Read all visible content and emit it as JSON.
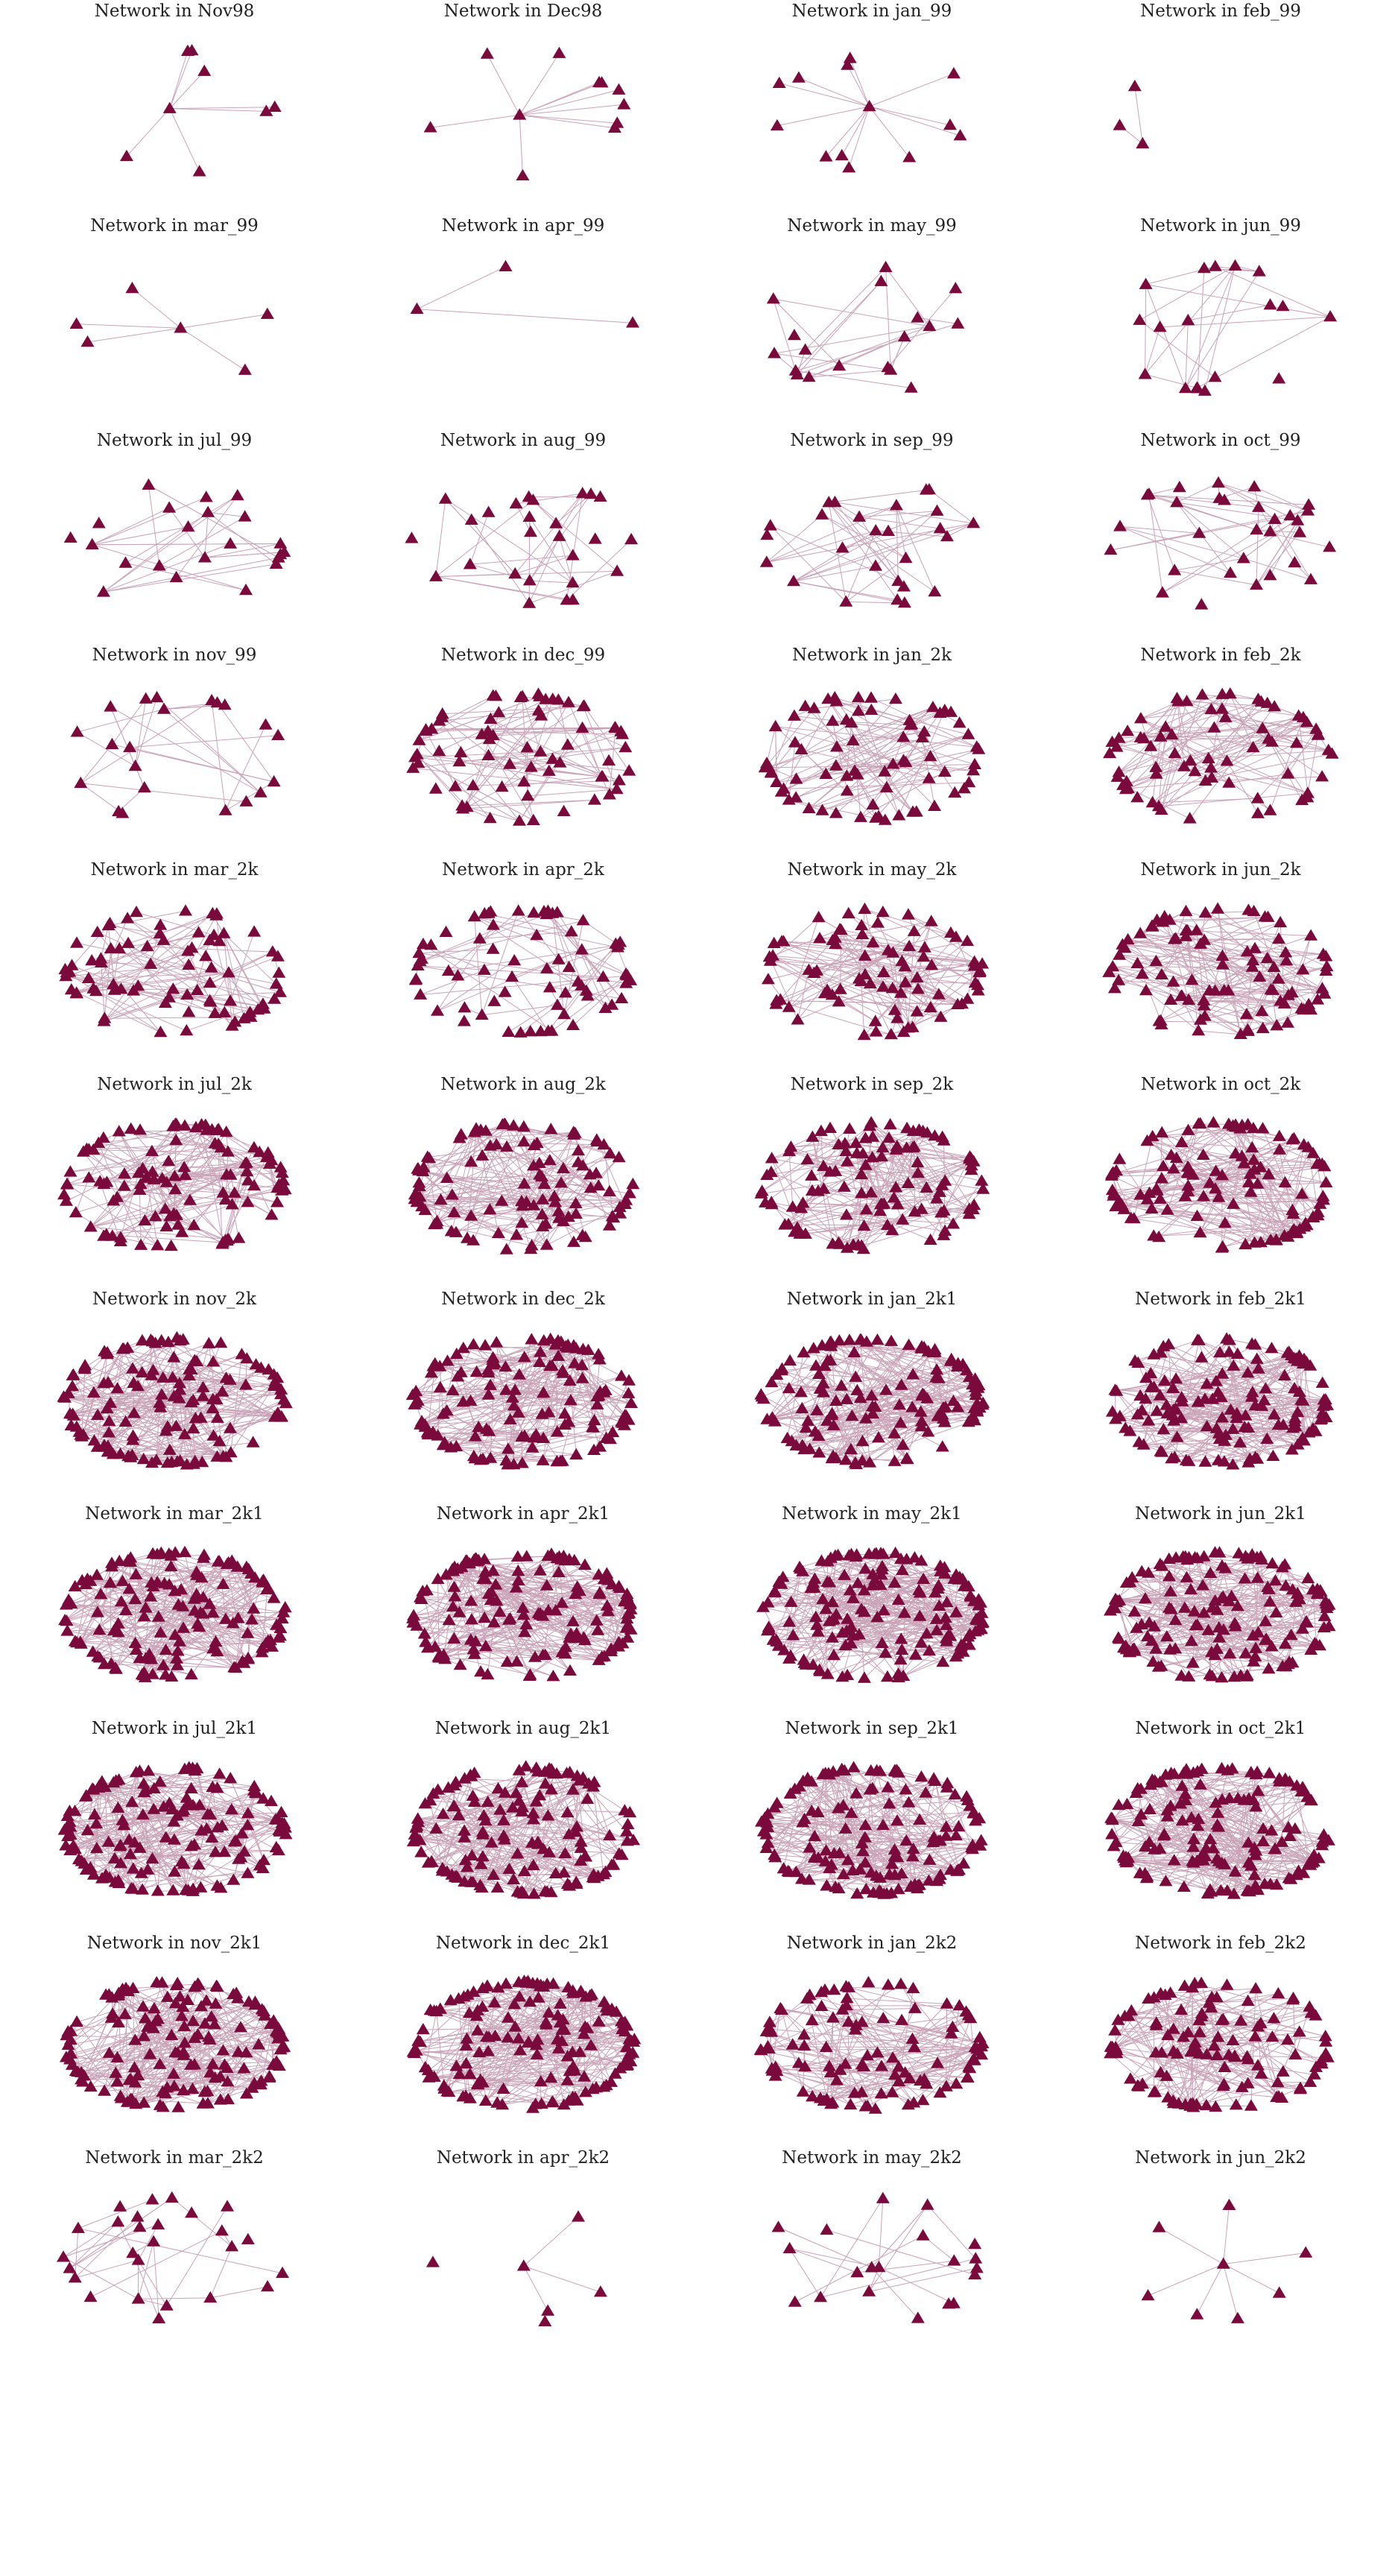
{
  "figure": {
    "node_color": "#7a0a3c",
    "edge_color": "#c9a3b8",
    "node_shape": "triangle",
    "title_prefix": "Network in",
    "panels": [
      {
        "title": "Network in Nov98",
        "nodes": 8,
        "edges": 7,
        "seed": 11
      },
      {
        "title": "Network in Dec98",
        "nodes": 11,
        "edges": 10,
        "seed": 12
      },
      {
        "title": "Network in jan_99",
        "nodes": 13,
        "edges": 12,
        "seed": 13
      },
      {
        "title": "Network in feb_99",
        "nodes": 3,
        "edges": 2,
        "seed": 14
      },
      {
        "title": "Network in mar_99",
        "nodes": 6,
        "edges": 5,
        "seed": 21
      },
      {
        "title": "Network in apr_99",
        "nodes": 3,
        "edges": 2,
        "seed": 22
      },
      {
        "title": "Network in may_99",
        "nodes": 18,
        "edges": 24,
        "seed": 23
      },
      {
        "title": "Network in jun_99",
        "nodes": 18,
        "edges": 22,
        "seed": 24
      },
      {
        "title": "Network in jul_99",
        "nodes": 22,
        "edges": 28,
        "seed": 31
      },
      {
        "title": "Network in aug_99",
        "nodes": 26,
        "edges": 34,
        "seed": 32
      },
      {
        "title": "Network in sep_99",
        "nodes": 26,
        "edges": 40,
        "seed": 33
      },
      {
        "title": "Network in oct_99",
        "nodes": 30,
        "edges": 44,
        "seed": 34
      },
      {
        "title": "Network in nov_99",
        "nodes": 21,
        "edges": 26,
        "seed": 41
      },
      {
        "title": "Network in dec_99",
        "nodes": 70,
        "edges": 90,
        "seed": 42
      },
      {
        "title": "Network in jan_2k",
        "nodes": 75,
        "edges": 110,
        "seed": 43
      },
      {
        "title": "Network in feb_2k",
        "nodes": 70,
        "edges": 110,
        "seed": 44
      },
      {
        "title": "Network in mar_2k",
        "nodes": 80,
        "edges": 100,
        "seed": 51
      },
      {
        "title": "Network in apr_2k",
        "nodes": 70,
        "edges": 60,
        "seed": 52
      },
      {
        "title": "Network in may_2k",
        "nodes": 85,
        "edges": 130,
        "seed": 53
      },
      {
        "title": "Network in jun_2k",
        "nodes": 95,
        "edges": 150,
        "seed": 54
      },
      {
        "title": "Network in jul_2k",
        "nodes": 110,
        "edges": 170,
        "seed": 61
      },
      {
        "title": "Network in aug_2k",
        "nodes": 110,
        "edges": 170,
        "seed": 62
      },
      {
        "title": "Network in sep_2k",
        "nodes": 115,
        "edges": 180,
        "seed": 63
      },
      {
        "title": "Network in oct_2k",
        "nodes": 120,
        "edges": 190,
        "seed": 64
      },
      {
        "title": "Network in nov_2k",
        "nodes": 140,
        "edges": 220,
        "seed": 71
      },
      {
        "title": "Network in dec_2k",
        "nodes": 140,
        "edges": 220,
        "seed": 72
      },
      {
        "title": "Network in jan_2k1",
        "nodes": 145,
        "edges": 230,
        "seed": 73
      },
      {
        "title": "Network in feb_2k1",
        "nodes": 145,
        "edges": 230,
        "seed": 74
      },
      {
        "title": "Network in mar_2k1",
        "nodes": 150,
        "edges": 240,
        "seed": 81
      },
      {
        "title": "Network in apr_2k1",
        "nodes": 150,
        "edges": 240,
        "seed": 82
      },
      {
        "title": "Network in may_2k1",
        "nodes": 170,
        "edges": 270,
        "seed": 83
      },
      {
        "title": "Network in jun_2k1",
        "nodes": 160,
        "edges": 260,
        "seed": 84
      },
      {
        "title": "Network in jul_2k1",
        "nodes": 150,
        "edges": 240,
        "seed": 91
      },
      {
        "title": "Network in aug_2k1",
        "nodes": 150,
        "edges": 240,
        "seed": 92
      },
      {
        "title": "Network in sep_2k1",
        "nodes": 150,
        "edges": 240,
        "seed": 93
      },
      {
        "title": "Network in oct_2k1",
        "nodes": 155,
        "edges": 250,
        "seed": 94
      },
      {
        "title": "Network in nov_2k1",
        "nodes": 160,
        "edges": 250,
        "seed": 101
      },
      {
        "title": "Network in dec_2k1",
        "nodes": 160,
        "edges": 250,
        "seed": 102
      },
      {
        "title": "Network in jan_2k2",
        "nodes": 110,
        "edges": 150,
        "seed": 103
      },
      {
        "title": "Network in feb_2k2",
        "nodes": 120,
        "edges": 170,
        "seed": 104
      },
      {
        "title": "Network in mar_2k2",
        "nodes": 26,
        "edges": 30,
        "seed": 111
      },
      {
        "title": "Network in apr_2k2",
        "nodes": 6,
        "edges": 3,
        "seed": 112
      },
      {
        "title": "Network in may_2k2",
        "nodes": 20,
        "edges": 22,
        "seed": 113
      },
      {
        "title": "Network in jun_2k2",
        "nodes": 8,
        "edges": 7,
        "seed": 114
      }
    ]
  }
}
